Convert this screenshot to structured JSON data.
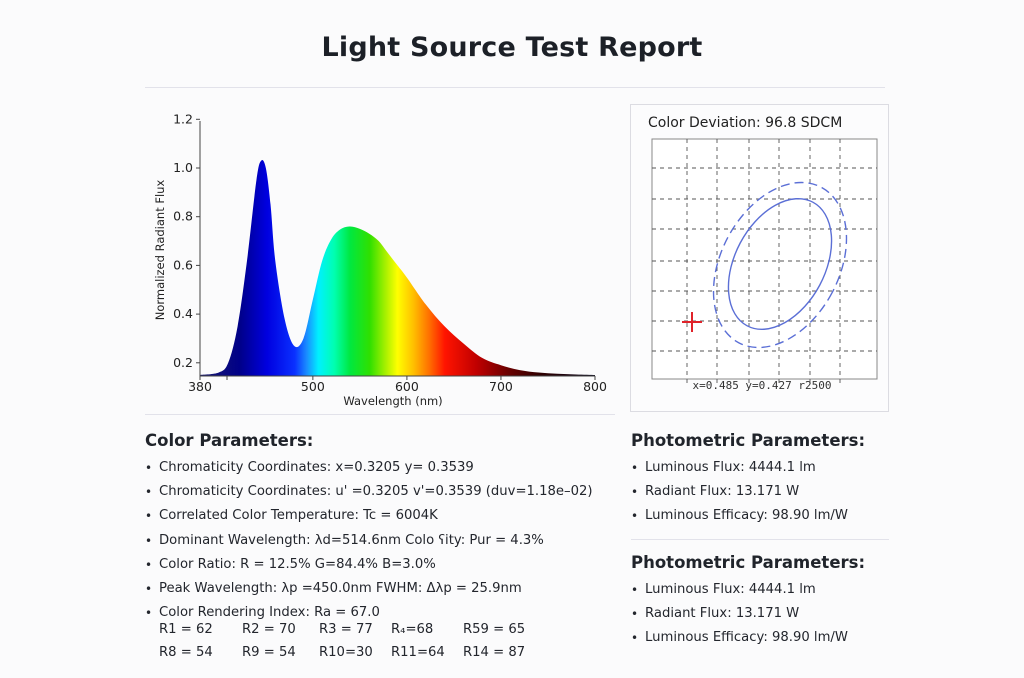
{
  "header": {
    "title": "Light Source Test Report"
  },
  "chart_data": {
    "type": "area",
    "title": "",
    "xlabel": "Wavelength (nm)",
    "ylabel": "Normalized Radiant Flux",
    "xlim": [
      380,
      800
    ],
    "ylim": [
      0.15,
      1.2
    ],
    "x_ticks": [
      "380",
      "500",
      "600",
      "700",
      "800"
    ],
    "y_ticks": [
      "0.2",
      "0.4",
      "0.6",
      "0.8",
      "1.0",
      "1.2"
    ],
    "grid": false,
    "fill": "spectral-rainbow",
    "x": [
      380,
      400,
      410,
      420,
      430,
      440,
      445,
      450,
      455,
      460,
      470,
      480,
      490,
      500,
      510,
      520,
      530,
      540,
      550,
      560,
      570,
      580,
      590,
      600,
      620,
      640,
      660,
      680,
      700,
      720,
      740,
      760,
      780,
      800
    ],
    "values": [
      0.15,
      0.16,
      0.2,
      0.35,
      0.62,
      0.95,
      1.03,
      1.0,
      0.85,
      0.62,
      0.38,
      0.27,
      0.3,
      0.46,
      0.62,
      0.71,
      0.75,
      0.76,
      0.75,
      0.73,
      0.7,
      0.65,
      0.6,
      0.55,
      0.44,
      0.35,
      0.28,
      0.22,
      0.19,
      0.17,
      0.16,
      0.155,
      0.152,
      0.15
    ]
  },
  "color_deviation": {
    "label": "Color Deviation:",
    "value": "96.8 SDCM",
    "footer": "x=0.485  y=0.427  r2500",
    "marker_color": "#e0232a",
    "ellipse_color": "#5b6fd6"
  },
  "color_params": {
    "heading": "Color Parameters:",
    "items": [
      "Chromaticity Coordinates:  x=0.3205     y= 0.3539",
      "Chromaticity Coordinates:  u' =0.3205  v'=0.3539 (duv=1.18e–02)",
      "Correlated Color Temperature: Tc = 6004K",
      "Dominant Wavelength:  λd=514.6nm      Colo ʕity: Pur = 4.3%",
      "Color Ratio: R = 12.5%    G=84.4%   B=3.0%",
      "Peak Wavelength: λp =450.0nm    FWHM: Δλp = 25.9nm",
      "Color Rendering Index: Ra = 67.0"
    ],
    "r_rows": [
      [
        "R1 = 62",
        "R2 = 70",
        "R3 = 77",
        "R₄=68",
        "R59 = 65"
      ],
      [
        "R8 = 54",
        "R9 = 54",
        "R10=30",
        "R11=64",
        "R14 = 87"
      ]
    ]
  },
  "photometric_1": {
    "heading": "Photometric Parameters:",
    "items": [
      "Luminous Flux:  4444.1 lm",
      "Radiant Flux:      13.171 W",
      "Luminous Efficacy:  98.90 lm/W"
    ]
  },
  "photometric_2": {
    "heading": "Photometric Parameters:",
    "items": [
      "Luminous Flux:  4444.1 lm",
      "Radiant Flux:      13.171 W",
      "Luminous Efficacy:  98.90 lm/W"
    ]
  }
}
